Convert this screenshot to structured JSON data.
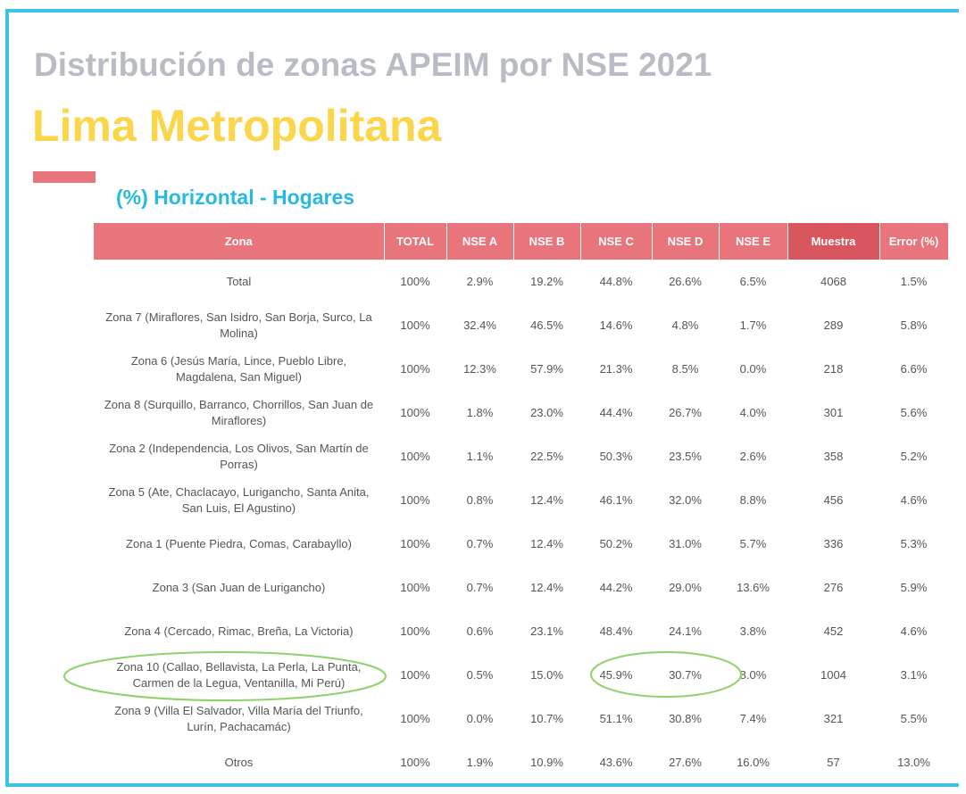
{
  "header": {
    "title": "Distribución de zonas APEIM por NSE 2021",
    "subtitle": "Lima Metropolitana",
    "section": "(%) Horizontal - Hogares"
  },
  "table": {
    "header": [
      "Zona",
      "TOTAL",
      "NSE A",
      "NSE B",
      "NSE C",
      "NSE D",
      "NSE E",
      "Muestra",
      "Error (%)"
    ],
    "rows": [
      [
        "Total",
        "100%",
        "2.9%",
        "19.2%",
        "44.8%",
        "26.6%",
        "6.5%",
        "4068",
        "1.5%"
      ],
      [
        "Zona 7 (Miraflores, San Isidro, San Borja, Surco, La Molina)",
        "100%",
        "32.4%",
        "46.5%",
        "14.6%",
        "4.8%",
        "1.7%",
        "289",
        "5.8%"
      ],
      [
        "Zona 6 (Jesús María, Lince, Pueblo Libre, Magdalena, San Miguel)",
        "100%",
        "12.3%",
        "57.9%",
        "21.3%",
        "8.5%",
        "0.0%",
        "218",
        "6.6%"
      ],
      [
        "Zona 8 (Surquillo, Barranco, Chorrillos, San Juan de Miraflores)",
        "100%",
        "1.8%",
        "23.0%",
        "44.4%",
        "26.7%",
        "4.0%",
        "301",
        "5.6%"
      ],
      [
        "Zona 2 (Independencia, Los Olivos, San Martín de Porras)",
        "100%",
        "1.1%",
        "22.5%",
        "50.3%",
        "23.5%",
        "2.6%",
        "358",
        "5.2%"
      ],
      [
        "Zona 5 (Ate, Chaclacayo, Lurigancho, Santa Anita, San Luis, El Agustino)",
        "100%",
        "0.8%",
        "12.4%",
        "46.1%",
        "32.0%",
        "8.8%",
        "456",
        "4.6%"
      ],
      [
        "Zona 1 (Puente Piedra, Comas, Carabayllo)",
        "100%",
        "0.7%",
        "12.4%",
        "50.2%",
        "31.0%",
        "5.7%",
        "336",
        "5.3%"
      ],
      [
        "Zona 3 (San Juan de Lurigancho)",
        "100%",
        "0.7%",
        "12.4%",
        "44.2%",
        "29.0%",
        "13.6%",
        "276",
        "5.9%"
      ],
      [
        "Zona 4 (Cercado, Rimac, Breña, La Victoria)",
        "100%",
        "0.6%",
        "23.1%",
        "48.4%",
        "24.1%",
        "3.8%",
        "452",
        "4.6%"
      ],
      [
        "Zona 10 (Callao, Bellavista, La Perla, La Punta, Carmen de la Legua, Ventanilla, Mi Perú)",
        "100%",
        "0.5%",
        "15.0%",
        "45.9%",
        "30.7%",
        "8.0%",
        "1004",
        "3.1%"
      ],
      [
        "Zona 9 (Villa El Salvador, Villa María del Triunfo, Lurín, Pachacamác)",
        "100%",
        "0.0%",
        "10.7%",
        "51.1%",
        "30.8%",
        "7.4%",
        "321",
        "5.5%"
      ],
      [
        "Otros",
        "100%",
        "1.9%",
        "10.9%",
        "43.6%",
        "27.6%",
        "16.0%",
        "57",
        "13.0%"
      ]
    ]
  }
}
